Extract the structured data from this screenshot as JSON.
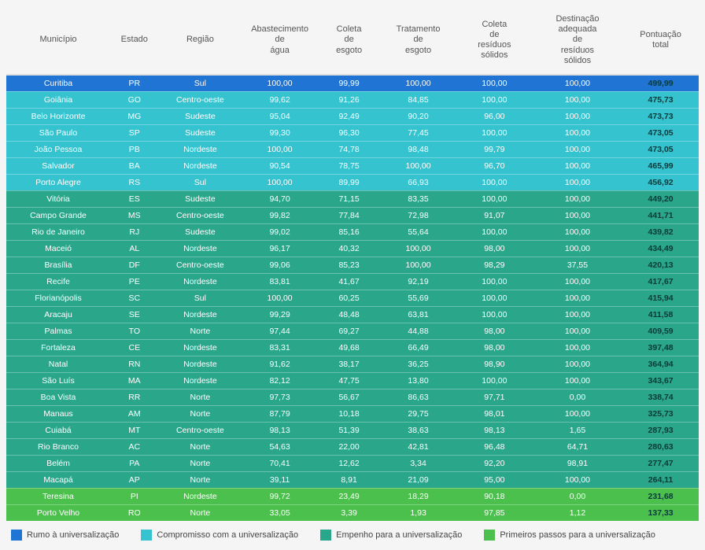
{
  "columns": [
    "Município",
    "Estado",
    "Região",
    "Abastecimento de água",
    "Coleta de esgoto",
    "Tratamento de esgoto",
    "Coleta de resíduos sólidos",
    "Destinação adequada de resíduos sólidos",
    "Pontuação total"
  ],
  "tiers": {
    "rumo": {
      "label": "Rumo à universalização",
      "color": "#1f74d4"
    },
    "compromisso": {
      "label": "Compromisso com a universalização",
      "color": "#34c3cf"
    },
    "empenho": {
      "label": "Empenho para a universalização",
      "color": "#2aa68a"
    },
    "primeiros": {
      "label": "Primeiros passos para a universalização",
      "color": "#4cc04c"
    }
  },
  "rows": [
    {
      "tier": "rumo",
      "c": [
        "Curitiba",
        "PR",
        "Sul",
        "100,00",
        "99,99",
        "100,00",
        "100,00",
        "100,00",
        "499,99"
      ]
    },
    {
      "tier": "compromisso",
      "c": [
        "Goiânia",
        "GO",
        "Centro-oeste",
        "99,62",
        "91,26",
        "84,85",
        "100,00",
        "100,00",
        "475,73"
      ]
    },
    {
      "tier": "compromisso",
      "c": [
        "Belo Horizonte",
        "MG",
        "Sudeste",
        "95,04",
        "92,49",
        "90,20",
        "96,00",
        "100,00",
        "473,73"
      ]
    },
    {
      "tier": "compromisso",
      "c": [
        "São Paulo",
        "SP",
        "Sudeste",
        "99,30",
        "96,30",
        "77,45",
        "100,00",
        "100,00",
        "473,05"
      ]
    },
    {
      "tier": "compromisso",
      "c": [
        "João Pessoa",
        "PB",
        "Nordeste",
        "100,00",
        "74,78",
        "98,48",
        "99,79",
        "100,00",
        "473,05"
      ]
    },
    {
      "tier": "compromisso",
      "c": [
        "Salvador",
        "BA",
        "Nordeste",
        "90,54",
        "78,75",
        "100,00",
        "96,70",
        "100,00",
        "465,99"
      ]
    },
    {
      "tier": "compromisso",
      "c": [
        "Porto Alegre",
        "RS",
        "Sul",
        "100,00",
        "89,99",
        "66,93",
        "100,00",
        "100,00",
        "456,92"
      ]
    },
    {
      "tier": "empenho",
      "c": [
        "Vitória",
        "ES",
        "Sudeste",
        "94,70",
        "71,15",
        "83,35",
        "100,00",
        "100,00",
        "449,20"
      ]
    },
    {
      "tier": "empenho",
      "c": [
        "Campo Grande",
        "MS",
        "Centro-oeste",
        "99,82",
        "77,84",
        "72,98",
        "91,07",
        "100,00",
        "441,71"
      ]
    },
    {
      "tier": "empenho",
      "c": [
        "Rio de Janeiro",
        "RJ",
        "Sudeste",
        "99,02",
        "85,16",
        "55,64",
        "100,00",
        "100,00",
        "439,82"
      ]
    },
    {
      "tier": "empenho",
      "c": [
        "Maceió",
        "AL",
        "Nordeste",
        "96,17",
        "40,32",
        "100,00",
        "98,00",
        "100,00",
        "434,49"
      ]
    },
    {
      "tier": "empenho",
      "c": [
        "Brasília",
        "DF",
        "Centro-oeste",
        "99,06",
        "85,23",
        "100,00",
        "98,29",
        "37,55",
        "420,13"
      ]
    },
    {
      "tier": "empenho",
      "c": [
        "Recife",
        "PE",
        "Nordeste",
        "83,81",
        "41,67",
        "92,19",
        "100,00",
        "100,00",
        "417,67"
      ]
    },
    {
      "tier": "empenho",
      "c": [
        "Florianópolis",
        "SC",
        "Sul",
        "100,00",
        "60,25",
        "55,69",
        "100,00",
        "100,00",
        "415,94"
      ]
    },
    {
      "tier": "empenho",
      "c": [
        "Aracaju",
        "SE",
        "Nordeste",
        "99,29",
        "48,48",
        "63,81",
        "100,00",
        "100,00",
        "411,58"
      ]
    },
    {
      "tier": "empenho",
      "c": [
        "Palmas",
        "TO",
        "Norte",
        "97,44",
        "69,27",
        "44,88",
        "98,00",
        "100,00",
        "409,59"
      ]
    },
    {
      "tier": "empenho",
      "c": [
        "Fortaleza",
        "CE",
        "Nordeste",
        "83,31",
        "49,68",
        "66,49",
        "98,00",
        "100,00",
        "397,48"
      ]
    },
    {
      "tier": "empenho",
      "c": [
        "Natal",
        "RN",
        "Nordeste",
        "91,62",
        "38,17",
        "36,25",
        "98,90",
        "100,00",
        "364,94"
      ]
    },
    {
      "tier": "empenho",
      "c": [
        "São Luís",
        "MA",
        "Nordeste",
        "82,12",
        "47,75",
        "13,80",
        "100,00",
        "100,00",
        "343,67"
      ]
    },
    {
      "tier": "empenho",
      "c": [
        "Boa Vista",
        "RR",
        "Norte",
        "97,73",
        "56,67",
        "86,63",
        "97,71",
        "0,00",
        "338,74"
      ]
    },
    {
      "tier": "empenho",
      "c": [
        "Manaus",
        "AM",
        "Norte",
        "87,79",
        "10,18",
        "29,75",
        "98,01",
        "100,00",
        "325,73"
      ]
    },
    {
      "tier": "empenho",
      "c": [
        "Cuiabá",
        "MT",
        "Centro-oeste",
        "98,13",
        "51,39",
        "38,63",
        "98,13",
        "1,65",
        "287,93"
      ]
    },
    {
      "tier": "empenho",
      "c": [
        "Rio Branco",
        "AC",
        "Norte",
        "54,63",
        "22,00",
        "42,81",
        "96,48",
        "64,71",
        "280,63"
      ]
    },
    {
      "tier": "empenho",
      "c": [
        "Belém",
        "PA",
        "Norte",
        "70,41",
        "12,62",
        "3,34",
        "92,20",
        "98,91",
        "277,47"
      ]
    },
    {
      "tier": "empenho",
      "c": [
        "Macapá",
        "AP",
        "Norte",
        "39,11",
        "8,91",
        "21,09",
        "95,00",
        "100,00",
        "264,11"
      ]
    },
    {
      "tier": "primeiros",
      "c": [
        "Teresina",
        "PI",
        "Nordeste",
        "99,72",
        "23,49",
        "18,29",
        "90,18",
        "0,00",
        "231,68"
      ]
    },
    {
      "tier": "primeiros",
      "c": [
        "Porto Velho",
        "RO",
        "Norte",
        "33,05",
        "3,39",
        "1,93",
        "97,85",
        "1,12",
        "137,33"
      ]
    }
  ],
  "legend_order": [
    "rumo",
    "compromisso",
    "empenho",
    "primeiros"
  ],
  "col_widths": [
    "15%",
    "7%",
    "12%",
    "11%",
    "9%",
    "11%",
    "11%",
    "13%",
    "11%"
  ]
}
